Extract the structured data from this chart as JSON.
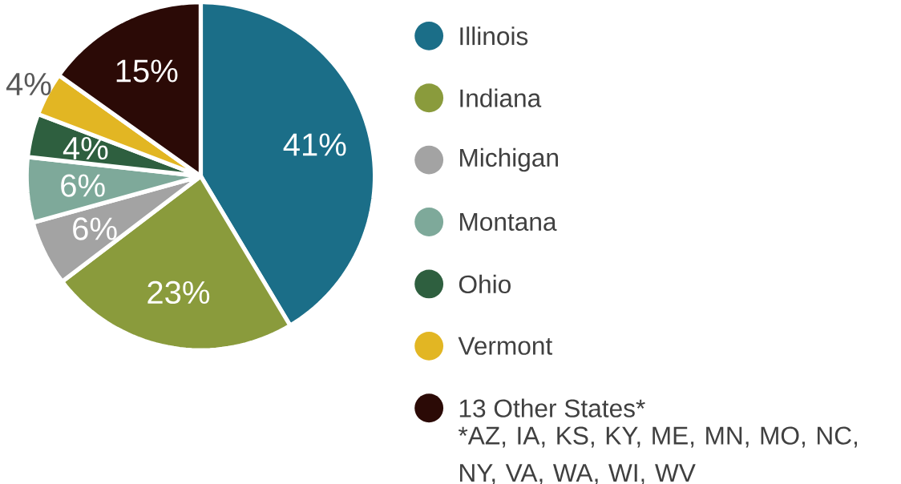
{
  "chart_data": {
    "type": "pie",
    "categories": [
      "Illinois",
      "Indiana",
      "Michigan",
      "Montana",
      "Ohio",
      "Vermont",
      "13 Other States*"
    ],
    "values": [
      41,
      23,
      6,
      6,
      4,
      4,
      15
    ],
    "value_labels": [
      "41%",
      "23%",
      "6%",
      "6%",
      "4%",
      "4%",
      "15%"
    ],
    "colors": [
      "#1b6e88",
      "#8a9b3c",
      "#a3a3a3",
      "#7ea99a",
      "#2e5f3f",
      "#e2b623",
      "#2b0a06"
    ],
    "legend": "right",
    "annotations": [
      "*AZ, IA, KS, KY, ME, MN, MO, NC, NY, VA, WA, WI, WV"
    ]
  }
}
